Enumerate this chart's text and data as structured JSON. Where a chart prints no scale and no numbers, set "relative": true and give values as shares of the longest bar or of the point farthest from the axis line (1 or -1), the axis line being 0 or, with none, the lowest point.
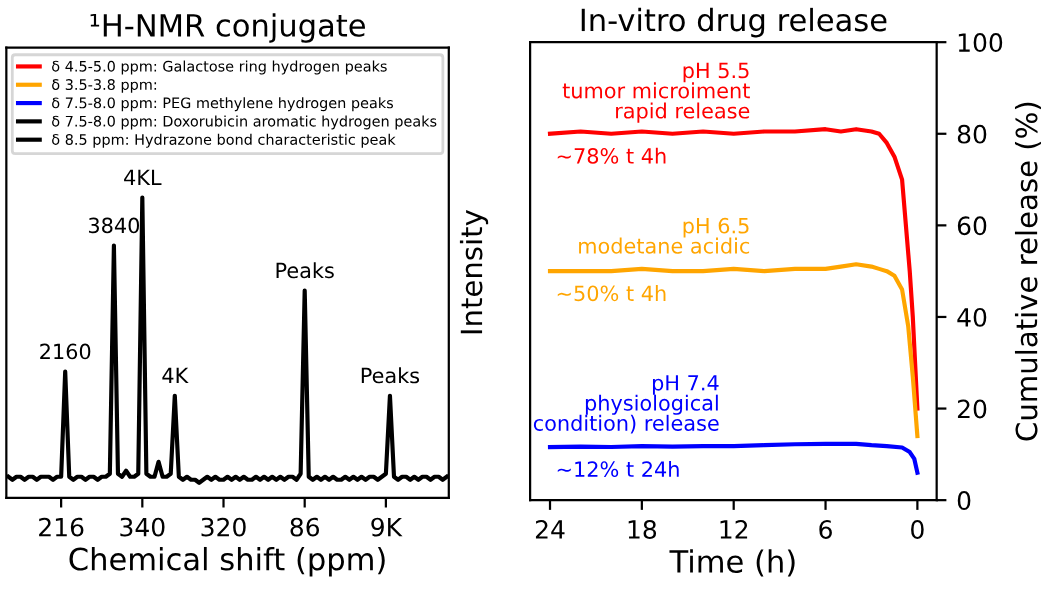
{
  "chart_data": [
    {
      "type": "line",
      "title": "¹H-NMR conjugate",
      "xlabel": "Chemical shift (ppm)",
      "ylabel": "Intensity",
      "relative": true,
      "categories": [
        null,
        null,
        null,
        null,
        null,
        null,
        null,
        null,
        null,
        null,
        null,
        null,
        null,
        "216",
        null,
        null,
        null,
        null,
        null,
        null,
        null,
        null,
        null,
        null,
        null,
        null,
        null,
        null,
        null,
        null,
        null,
        null,
        null,
        "340",
        null,
        null,
        null,
        null,
        null,
        null,
        null,
        null,
        null,
        null,
        null,
        null,
        null,
        null,
        null,
        null,
        null,
        null,
        null,
        "320",
        null,
        null,
        null,
        null,
        null,
        null,
        null,
        null,
        null,
        null,
        null,
        null,
        null,
        null,
        null,
        null,
        null,
        null,
        null,
        "86",
        null,
        null,
        null,
        null,
        null,
        null,
        null,
        null,
        null,
        null,
        null,
        null,
        null,
        null,
        null,
        null,
        null,
        null,
        null,
        "9K",
        null,
        null,
        null,
        null,
        null,
        null,
        null,
        null,
        null,
        null,
        null,
        null,
        null,
        null,
        null
      ],
      "series": [
        {
          "name": "δ 4.5-5.0 ppm: Galactose ring hydrogen peaks",
          "color": "#ff0000",
          "values": [
            null,
            null,
            null,
            null,
            null,
            null,
            null,
            null,
            null,
            null,
            null,
            null,
            null,
            null,
            null,
            null,
            null,
            null,
            null,
            null,
            null,
            null,
            null,
            null,
            null,
            null,
            null,
            null,
            null,
            null,
            null,
            null,
            null,
            null,
            null,
            null,
            null,
            null,
            null,
            null,
            null,
            null,
            null,
            null,
            null,
            null,
            null,
            null,
            null,
            null,
            null,
            null,
            null,
            null,
            null,
            null,
            null,
            null,
            null,
            null,
            null,
            null,
            null,
            null,
            null,
            null,
            null,
            null,
            null,
            null,
            null,
            null,
            null,
            null,
            null,
            null,
            null,
            null,
            null,
            null,
            null,
            null,
            null,
            null,
            null,
            null,
            null,
            null,
            null,
            null,
            null,
            null,
            null,
            null,
            null,
            null,
            null,
            null,
            null,
            null,
            null,
            null,
            null,
            null,
            null,
            null,
            null,
            null,
            null
          ]
        },
        {
          "name": "δ 3.5-3.8 ppm:",
          "color": "#ffa500",
          "values": [
            null,
            null,
            null,
            null,
            null,
            null,
            null,
            null,
            null,
            null,
            null,
            null,
            null,
            null,
            null,
            null,
            null,
            null,
            null,
            null,
            null,
            null,
            null,
            null,
            null,
            null,
            null,
            null,
            null,
            null,
            null,
            null,
            null,
            null,
            null,
            null,
            null,
            null,
            null,
            null,
            null,
            null,
            null,
            null,
            null,
            null,
            null,
            null,
            null,
            null,
            null,
            null,
            null,
            null,
            null,
            null,
            null,
            null,
            null,
            null,
            null,
            null,
            null,
            null,
            null,
            null,
            null,
            null,
            null,
            null,
            null,
            null,
            null,
            null,
            null,
            null,
            null,
            null,
            null,
            null,
            null,
            null,
            null,
            null,
            null,
            null,
            null,
            null,
            null,
            null,
            null,
            null,
            null,
            null,
            null,
            null,
            null,
            null,
            null,
            null,
            null,
            null,
            null,
            null,
            null,
            null,
            null,
            null,
            null
          ]
        },
        {
          "name": "δ 7.5-8.0 ppm: PEG methylene hydrogen peaks",
          "color": "#0000ff",
          "values": [
            null,
            null,
            null,
            null,
            null,
            null,
            null,
            null,
            null,
            null,
            null,
            null,
            null,
            null,
            null,
            null,
            null,
            null,
            null,
            null,
            null,
            null,
            null,
            null,
            null,
            null,
            null,
            null,
            null,
            null,
            null,
            null,
            null,
            null,
            null,
            null,
            null,
            null,
            null,
            null,
            null,
            null,
            null,
            null,
            null,
            null,
            null,
            null,
            null,
            null,
            null,
            null,
            null,
            null,
            null,
            null,
            null,
            null,
            null,
            null,
            null,
            null,
            null,
            null,
            null,
            null,
            null,
            null,
            null,
            null,
            null,
            null,
            null,
            null,
            null,
            null,
            null,
            null,
            null,
            null,
            null,
            null,
            null,
            null,
            null,
            null,
            null,
            null,
            null,
            null,
            null,
            null,
            null,
            null,
            null,
            null,
            null,
            null,
            null,
            null,
            null,
            null,
            null,
            null,
            null,
            null,
            null,
            null,
            null
          ]
        },
        {
          "name": "δ 7.5-8.0 ppm: Doxorubicin aromatic hydrogen peaks",
          "color": "#000000",
          "values": [
            null,
            null,
            null,
            null,
            null,
            null,
            null,
            null,
            null,
            null,
            null,
            null,
            null,
            null,
            null,
            null,
            null,
            null,
            null,
            null,
            null,
            null,
            null,
            null,
            null,
            null,
            null,
            null,
            null,
            null,
            null,
            null,
            null,
            null,
            null,
            null,
            null,
            null,
            null,
            null,
            null,
            null,
            null,
            null,
            null,
            null,
            null,
            null,
            null,
            null,
            null,
            null,
            null,
            null,
            null,
            null,
            null,
            null,
            null,
            null,
            null,
            null,
            null,
            null,
            null,
            null,
            null,
            null,
            null,
            null,
            null,
            null,
            null,
            null,
            null,
            null,
            null,
            null,
            null,
            null,
            null,
            null,
            null,
            null,
            null,
            null,
            null,
            null,
            null,
            null,
            null,
            null,
            null,
            null,
            null,
            null,
            null,
            null,
            null,
            null,
            null,
            null,
            null,
            null,
            null,
            null,
            null,
            null,
            null
          ]
        },
        {
          "name": "δ 8.5 ppm: Hydrazone bond characteristic peak",
          "color": "#000000",
          "values": [
            null,
            null,
            null,
            null,
            null,
            null,
            null,
            null,
            null,
            null,
            null,
            null,
            null,
            null,
            null,
            null,
            null,
            null,
            null,
            null,
            null,
            null,
            null,
            null,
            null,
            null,
            null,
            null,
            null,
            null,
            null,
            null,
            null,
            null,
            null,
            null,
            null,
            null,
            null,
            null,
            null,
            null,
            null,
            null,
            null,
            null,
            null,
            null,
            null,
            null,
            null,
            null,
            null,
            null,
            null,
            null,
            null,
            null,
            null,
            null,
            null,
            null,
            null,
            null,
            null,
            null,
            null,
            null,
            null,
            null,
            null,
            null,
            null,
            null,
            null,
            null,
            null,
            null,
            null,
            null,
            null,
            null,
            null,
            null,
            null,
            null,
            null,
            null,
            null,
            null,
            null,
            null,
            null,
            null,
            null,
            null,
            null,
            null,
            null,
            null,
            null,
            null,
            null,
            null,
            null,
            null,
            null,
            null,
            null
          ]
        },
        {
          "color": "#000000",
          "values": [
            0.07,
            0.06,
            0.07,
            0.07,
            0.06,
            0.07,
            0.07,
            0.06,
            0.07,
            0.07,
            0.07,
            0.06,
            0.07,
            0.07,
            0.42,
            0.07,
            0.06,
            0.07,
            0.07,
            0.06,
            0.07,
            0.07,
            0.06,
            0.07,
            0.07,
            0.08,
            0.84,
            0.08,
            0.07,
            0.09,
            0.07,
            0.07,
            0.08,
            1.0,
            0.08,
            0.07,
            0.07,
            0.12,
            0.07,
            0.07,
            0.08,
            0.34,
            0.07,
            0.06,
            0.07,
            0.06,
            0.06,
            0.05,
            0.06,
            0.07,
            0.06,
            0.07,
            0.06,
            0.06,
            0.07,
            0.06,
            0.07,
            0.06,
            0.07,
            0.06,
            0.06,
            0.07,
            0.06,
            0.07,
            0.06,
            0.07,
            0.06,
            0.07,
            0.06,
            0.07,
            0.07,
            0.06,
            0.08,
            0.69,
            0.07,
            0.06,
            0.07,
            0.06,
            0.07,
            0.06,
            0.07,
            0.06,
            0.06,
            0.07,
            0.06,
            0.07,
            0.06,
            0.07,
            0.06,
            0.07,
            0.07,
            0.06,
            0.07,
            0.08,
            0.34,
            0.07,
            0.06,
            0.07,
            0.07,
            0.06,
            0.07,
            0.06,
            0.07,
            0.07,
            0.06,
            0.07,
            0.07,
            0.06,
            0.07
          ]
        }
      ],
      "annotations": [
        {
          "text": "2160",
          "y": 0.42
        },
        {
          "text": "3840",
          "y": 0.84
        },
        {
          "text": "4KL",
          "y": 1.0
        },
        {
          "text": "4K",
          "y": 0.34
        },
        {
          "text": "Peaks",
          "y": 0.69
        },
        {
          "text": "Peaks",
          "y": 0.34
        }
      ],
      "legend": "top",
      "marker": "none",
      "line_style": "solid",
      "grid": false
    },
    {
      "type": "line",
      "title": "In-vitro drug release",
      "xlabel": "Time (h)",
      "ylabel": "Cumulative release (%)",
      "xlim": [
        25.3,
        -1.26
      ],
      "xticks": [
        24,
        18,
        12,
        6,
        0
      ],
      "ylim": [
        0,
        100
      ],
      "yticks": [
        0,
        20,
        40,
        60,
        80,
        100
      ],
      "series": [
        {
          "color": "#ff0000",
          "x": [
            0,
            0.3,
            0.5,
            1,
            1.5,
            2,
            2.5,
            3,
            4,
            5,
            6,
            8,
            10,
            12,
            14,
            16,
            18,
            20,
            22,
            24
          ],
          "values": [
            20,
            40,
            50,
            70,
            75,
            78,
            80,
            80.5,
            81,
            80.5,
            81,
            80.5,
            80.5,
            80,
            80.5,
            80,
            80.5,
            80,
            80.5,
            80
          ]
        },
        {
          "color": "#ffa500",
          "x": [
            0,
            0.3,
            0.6,
            1,
            1.5,
            2,
            2.5,
            3,
            4,
            5,
            6,
            8,
            10,
            12,
            14,
            16,
            18,
            20,
            22,
            24
          ],
          "values": [
            14,
            27,
            38,
            46,
            49,
            50,
            50.5,
            51,
            51.5,
            51,
            50.5,
            50.5,
            50,
            50.5,
            50,
            50,
            50.5,
            50,
            50,
            50
          ]
        },
        {
          "color": "#0000ff",
          "x": [
            0,
            0.2,
            0.5,
            1,
            2,
            3,
            4,
            6,
            8,
            10,
            12,
            14,
            16,
            18,
            20,
            22,
            24
          ],
          "values": [
            6,
            9,
            10.5,
            11.5,
            11.8,
            12,
            12.3,
            12.3,
            12.2,
            12,
            11.8,
            11.8,
            11.7,
            11.8,
            11.6,
            11.7,
            11.6
          ]
        }
      ],
      "annotations": [
        "pH 5.5\ntumor microiment\nrapid release",
        "~78% t 4h",
        "pH 6.5\nmodetane acidic",
        "~50% t 4h",
        "pH 7.4\nphysiological\ncondition) release",
        "~12% t 24h"
      ],
      "marker": "none",
      "line_style": "solid",
      "grid": false
    }
  ]
}
